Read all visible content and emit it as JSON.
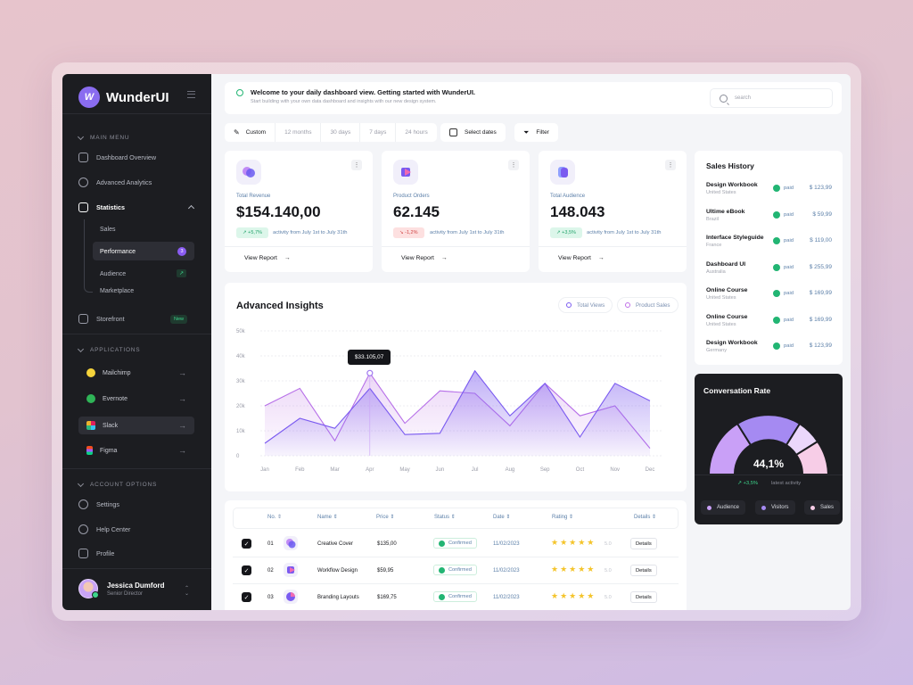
{
  "brand": {
    "name": "WunderUI",
    "mark": "W"
  },
  "sidebar": {
    "main_menu_label": "MAIN MENU",
    "items": {
      "overview": "Dashboard Overview",
      "analytics": "Advanced Analytics",
      "statistics": "Statistics",
      "storefront": "Storefront",
      "storefront_badge": "New"
    },
    "sub_items": {
      "sales": "Sales",
      "performance": "Performance",
      "performance_badge": "3",
      "audience": "Audience",
      "marketplace": "Marketplace"
    },
    "applications_label": "APPLICATIONS",
    "apps": [
      "Mailchimp",
      "Evernote",
      "Slack",
      "Figma"
    ],
    "account_label": "ACCOUNT OPTIONS",
    "account": {
      "settings": "Settings",
      "help": "Help Center",
      "profile": "Profile"
    },
    "user": {
      "name": "Jessica Dumford",
      "role": "Senior Director"
    }
  },
  "banner": {
    "title": "Welcome to your daily dashboard view. Getting started with WunderUI.",
    "subtitle": "Start building with your own data dashboard and insights with our new design system.",
    "search_placeholder": "search"
  },
  "filters": {
    "custom": "Custom",
    "ranges": [
      "12 months",
      "30 days",
      "7 days",
      "24 hours"
    ],
    "select_dates": "Select dates",
    "filter": "Filter"
  },
  "kpis": [
    {
      "label": "Total Revenue",
      "value": "$154.140,00",
      "delta": "+5,7%",
      "dir": "up",
      "activity": "activity from July 1st to July 31th",
      "cta": "View Report"
    },
    {
      "label": "Product Orders",
      "value": "62.145",
      "delta": "-1,2%",
      "dir": "down",
      "activity": "activity from July 1st to July 31th",
      "cta": "View Report"
    },
    {
      "label": "Total Audience",
      "value": "148.043",
      "delta": "+3,5%",
      "dir": "up",
      "activity": "activity from July 1st to July 31th",
      "cta": "View Report"
    }
  ],
  "insights": {
    "title": "Advanced Insights",
    "legend": [
      "Total Views",
      "Product Sales"
    ],
    "tooltip": "$33.105,07"
  },
  "chart_data": {
    "type": "area",
    "categories": [
      "Jan",
      "Feb",
      "Mar",
      "Apr",
      "May",
      "Jun",
      "Jul",
      "Aug",
      "Sep",
      "Oct",
      "Nov",
      "Dec"
    ],
    "yticks": [
      "0",
      "10k",
      "20k",
      "30k",
      "40k",
      "50k"
    ],
    "ylim": [
      0,
      50000
    ],
    "series": [
      {
        "name": "Total Views",
        "color": "#7a5af0",
        "values": [
          5000,
          15000,
          11000,
          27000,
          8500,
          9000,
          34000,
          16000,
          29000,
          7500,
          29000,
          22000
        ]
      },
      {
        "name": "Product Sales",
        "color": "#b66ee8",
        "values": [
          20000,
          27000,
          6000,
          33105,
          13000,
          26000,
          25000,
          12000,
          29000,
          16000,
          20000,
          3000
        ]
      }
    ],
    "tooltip_index": 3,
    "grid": true
  },
  "table": {
    "headers": [
      "No.",
      "Name",
      "Price",
      "Status",
      "Date",
      "Rating",
      "Details"
    ],
    "rows": [
      {
        "no": "01",
        "name": "Creative Cover",
        "price": "$135,00",
        "status": "Confirmed",
        "date": "11/02/2023",
        "rating": 5,
        "score": "5.0",
        "details": "Details"
      },
      {
        "no": "02",
        "name": "Workflow Design",
        "price": "$59,95",
        "status": "Confirmed",
        "date": "11/02/2023",
        "rating": 5,
        "score": "5.0",
        "details": "Details"
      },
      {
        "no": "03",
        "name": "Branding Layouts",
        "price": "$169,75",
        "status": "Confirmed",
        "date": "11/02/2023",
        "rating": 5,
        "score": "5.0",
        "details": "Details"
      }
    ]
  },
  "sales_history": {
    "title": "Sales History",
    "items": [
      {
        "name": "Design Workbook",
        "country": "United States",
        "status": "paid",
        "amount": "$ 123,99"
      },
      {
        "name": "Ultime eBook",
        "country": "Brazil",
        "status": "paid",
        "amount": "$ 59,99"
      },
      {
        "name": "Interface Styleguide",
        "country": "France",
        "status": "paid",
        "amount": "$ 119,00"
      },
      {
        "name": "Dashboard UI",
        "country": "Australia",
        "status": "paid",
        "amount": "$ 255,99"
      },
      {
        "name": "Online Course",
        "country": "United States",
        "status": "paid",
        "amount": "$ 169,99"
      },
      {
        "name": "Online Course",
        "country": "United States",
        "status": "paid",
        "amount": "$ 169,99"
      },
      {
        "name": "Design Workbook",
        "country": "Germany",
        "status": "paid",
        "amount": "$ 123,99"
      }
    ]
  },
  "conversion": {
    "title": "Conversation Rate",
    "value": "44,1%",
    "delta": "+3,5%",
    "delta_label": "latest activity",
    "legend": [
      "Audience",
      "Visitors",
      "Sales"
    ],
    "colors": [
      "#c9a0f7",
      "#a58af2",
      "#f7cde7"
    ]
  }
}
